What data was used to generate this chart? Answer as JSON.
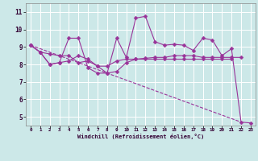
{
  "xlabel": "Windchill (Refroidissement éolien,°C)",
  "xlim": [
    -0.5,
    23.5
  ],
  "ylim": [
    4.5,
    11.5
  ],
  "yticks": [
    5,
    6,
    7,
    8,
    9,
    10,
    11
  ],
  "xticks": [
    0,
    1,
    2,
    3,
    4,
    5,
    6,
    7,
    8,
    9,
    10,
    11,
    12,
    13,
    14,
    15,
    16,
    17,
    18,
    19,
    20,
    21,
    22,
    23
  ],
  "bg_color": "#cce8e8",
  "line_color": "#993399",
  "grid_color": "#aadddd",
  "series_main": {
    "x": [
      0,
      1,
      2,
      3,
      4,
      5,
      6,
      7,
      8,
      9,
      10,
      11,
      12,
      13,
      14,
      15,
      16,
      17,
      18,
      19,
      20,
      21,
      22,
      23
    ],
    "y": [
      9.1,
      8.7,
      8.0,
      8.1,
      9.5,
      9.5,
      7.8,
      7.5,
      7.5,
      9.5,
      8.4,
      10.65,
      10.75,
      9.3,
      9.1,
      9.15,
      9.1,
      8.8,
      9.5,
      9.4,
      8.5,
      8.9,
      4.7,
      4.65
    ]
  },
  "series_flat1": {
    "x": [
      0,
      1,
      2,
      3,
      4,
      5,
      6,
      7,
      8,
      9,
      10,
      11,
      12,
      13,
      14,
      15,
      16,
      17,
      18,
      19,
      20,
      21,
      22
    ],
    "y": [
      9.1,
      8.7,
      8.6,
      8.5,
      8.5,
      8.1,
      8.2,
      7.9,
      7.5,
      7.6,
      8.1,
      8.3,
      8.35,
      8.4,
      8.4,
      8.5,
      8.5,
      8.5,
      8.4,
      8.4,
      8.4,
      8.4,
      8.4
    ]
  },
  "series_flat2": {
    "x": [
      0,
      1,
      2,
      3,
      4,
      5,
      6,
      7,
      8,
      9,
      10,
      11,
      12,
      13,
      14,
      15,
      16,
      17,
      18,
      19,
      20,
      21
    ],
    "y": [
      9.1,
      8.7,
      8.0,
      8.1,
      8.2,
      8.5,
      8.3,
      7.9,
      7.9,
      8.2,
      8.3,
      8.3,
      8.3,
      8.3,
      8.3,
      8.3,
      8.3,
      8.3,
      8.3,
      8.3,
      8.3,
      8.3
    ]
  },
  "series_diag": {
    "x": [
      0,
      22
    ],
    "y": [
      9.1,
      4.7
    ]
  }
}
